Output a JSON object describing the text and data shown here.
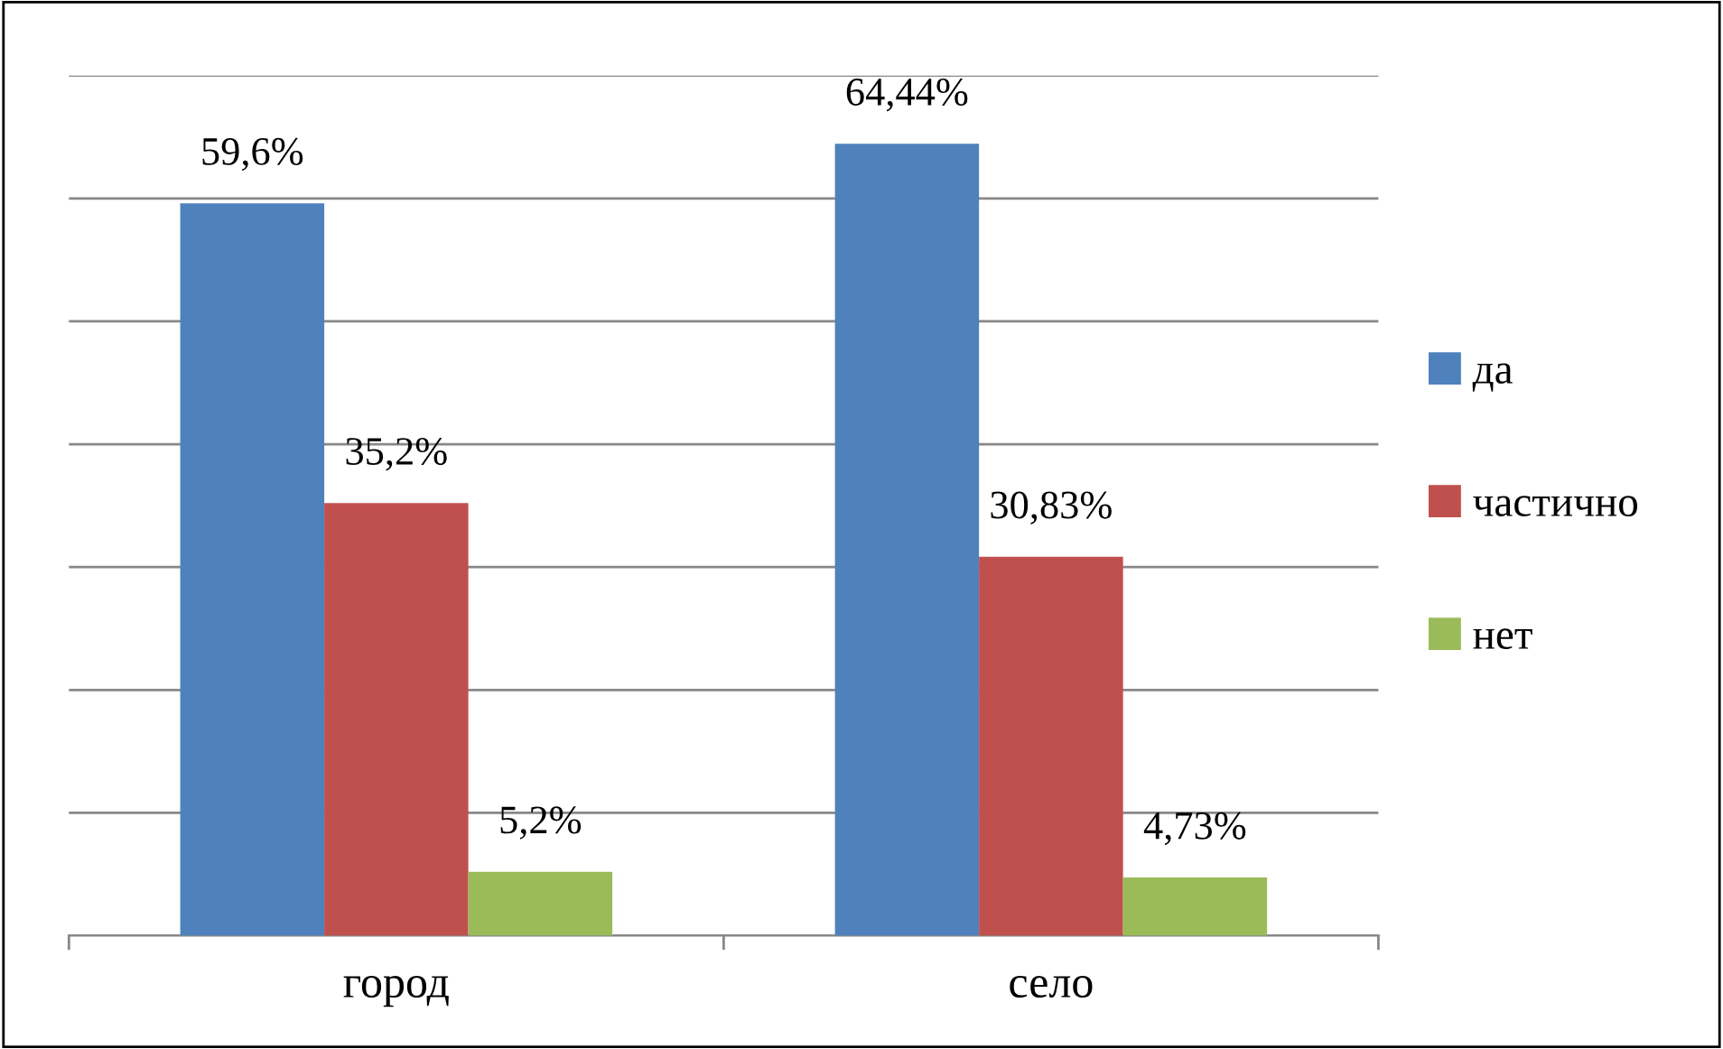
{
  "chart_data": {
    "type": "bar",
    "categories": [
      "город",
      "село"
    ],
    "series": [
      {
        "name": "да",
        "color": "#4f81bd",
        "values": [
          59.6,
          64.44
        ],
        "value_labels": [
          "59,6%",
          "64,44%"
        ]
      },
      {
        "name": "частично",
        "color": "#c0504d",
        "values": [
          35.2,
          30.83
        ],
        "value_labels": [
          "35,2%",
          "30,83%"
        ]
      },
      {
        "name": "нет",
        "color": "#9bbb59",
        "values": [
          5.2,
          4.73
        ],
        "value_labels": [
          "5,2%",
          "4,73%"
        ]
      }
    ],
    "ylim": [
      0,
      70
    ],
    "yticks": [
      {
        "value": 0,
        "label": null
      },
      {
        "value": 10,
        "label": null
      },
      {
        "value": 20,
        "label": null
      },
      {
        "value": 30,
        "label": null
      },
      {
        "value": 40,
        "label": null
      },
      {
        "value": 50,
        "label": null
      },
      {
        "value": 60,
        "label": null
      },
      {
        "value": 70,
        "label": null
      }
    ],
    "tick_labels": "x",
    "grid": "y",
    "legend": "right"
  }
}
